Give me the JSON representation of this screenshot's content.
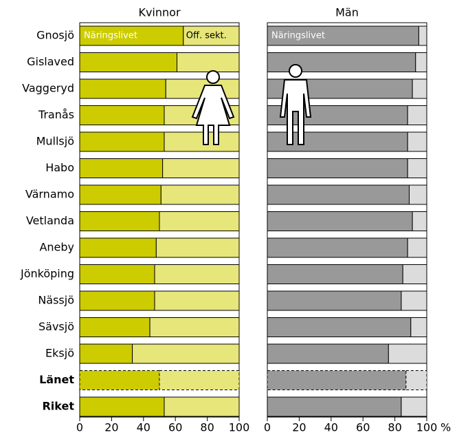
{
  "chart_data": [
    {
      "type": "bar",
      "orientation": "horizontal",
      "stacked": true,
      "title": "Kvinnor",
      "categories": [
        "Gnosjö",
        "Gislaved",
        "Vaggeryd",
        "Tranås",
        "Mullsjö",
        "Habo",
        "Värnamo",
        "Vetlanda",
        "Aneby",
        "Jönköping",
        "Nässjö",
        "Sävsjö",
        "Eksjö",
        "Länet",
        "Riket"
      ],
      "outline": [
        null,
        null,
        null,
        null,
        null,
        null,
        null,
        null,
        null,
        null,
        null,
        null,
        null,
        "dashed",
        "solid"
      ],
      "series": [
        {
          "name": "Näringslivet",
          "color": "#cccc00",
          "values": [
            65,
            61,
            54,
            53,
            53,
            52,
            51,
            50,
            48,
            47,
            47,
            44,
            33,
            50,
            53
          ]
        },
        {
          "name": "Off. sekt.",
          "color": "#e6e67a",
          "values": [
            35,
            39,
            46,
            47,
            47,
            48,
            49,
            50,
            52,
            53,
            53,
            56,
            67,
            50,
            47
          ]
        }
      ],
      "xlim": [
        0,
        100
      ],
      "xticks": [
        0,
        20,
        40,
        60,
        80,
        100
      ]
    },
    {
      "type": "bar",
      "orientation": "horizontal",
      "stacked": true,
      "title": "Män",
      "series": [
        {
          "name": "Näringslivet",
          "color": "#999999",
          "values": [
            95,
            93,
            91,
            88,
            88,
            88,
            89,
            91,
            88,
            85,
            84,
            90,
            76,
            87,
            84
          ]
        },
        {
          "color": "#dcdcdc",
          "values": [
            5,
            7,
            9,
            12,
            12,
            12,
            11,
            9,
            12,
            15,
            16,
            10,
            24,
            13,
            16
          ]
        }
      ],
      "xlim": [
        0,
        100
      ],
      "xticks": [
        0,
        20,
        40,
        60,
        80,
        100
      ],
      "x_unit": "%"
    }
  ]
}
